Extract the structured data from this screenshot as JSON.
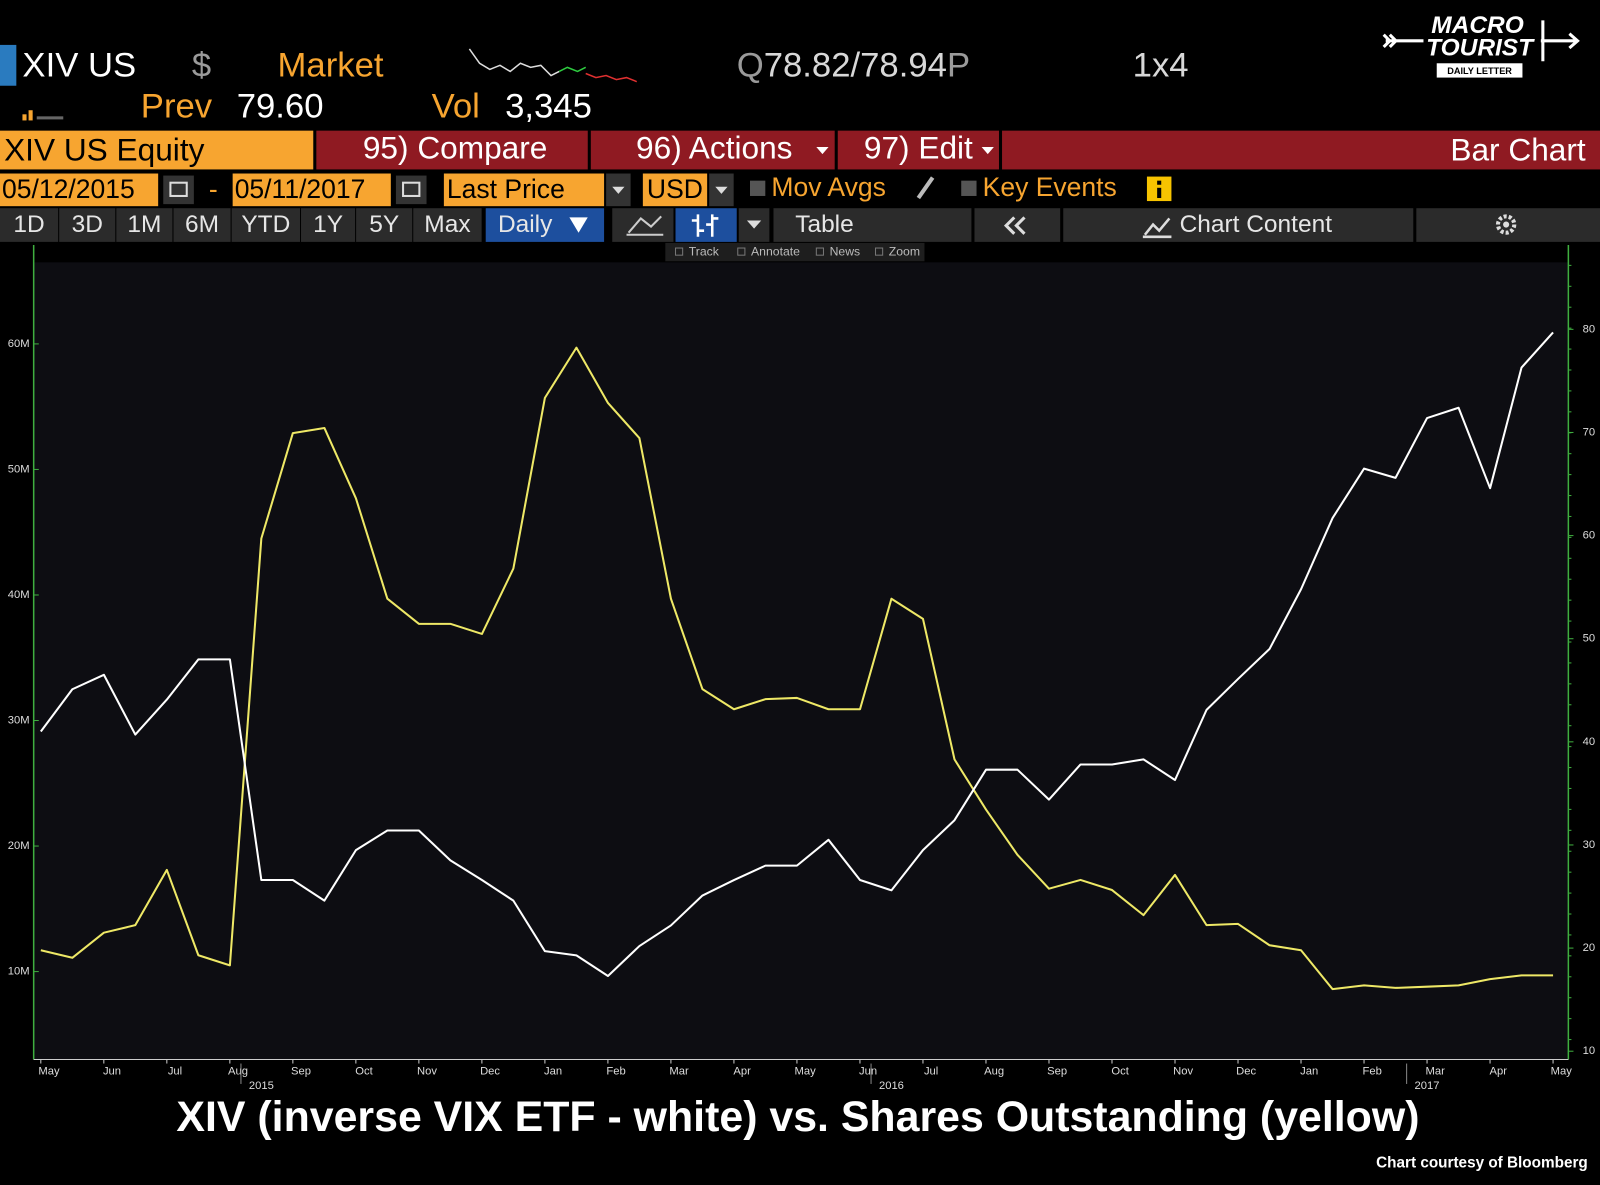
{
  "header": {
    "ticker": "XIV US",
    "currency": "$",
    "market": "Market",
    "quote_prefix": "Q",
    "quote": "78.82/78.94",
    "quote_suffix": "P",
    "size": "1x4",
    "prev_label": "Prev",
    "prev": "79.60",
    "vol_label": "Vol",
    "vol": "3,345"
  },
  "logo": {
    "line1": "MACRO",
    "line2": "TOURIST",
    "tagline": "DAILY LETTER"
  },
  "menu": {
    "security": "XIV US Equity",
    "compare": "95) Compare",
    "actions": "96) Actions",
    "edit": "97) Edit",
    "view": "Bar Chart"
  },
  "controls": {
    "start_date": "05/12/2015",
    "separator": "-",
    "end_date": "05/11/2017",
    "field": "Last Price",
    "currency": "USD",
    "mov_avgs": "Mov Avgs",
    "key_events": "Key Events"
  },
  "tabs": [
    "1D",
    "3D",
    "1M",
    "6M",
    "YTD",
    "1Y",
    "5Y",
    "Max"
  ],
  "period": "Daily",
  "table": "Table",
  "chart_content": "Chart Content",
  "tools": [
    "Track",
    "Annotate",
    "News",
    "Zoom"
  ],
  "chart_data": {
    "type": "line",
    "title": "XIV (inverse VIX ETF - white) vs. Shares Outstanding (yellow)",
    "source": "Chart courtesy of Bloomberg",
    "categories": [
      "May",
      null,
      "Jun",
      null,
      "Jul",
      null,
      "Aug",
      null,
      "Sep",
      null,
      "Oct",
      null,
      "Nov",
      null,
      "Dec",
      null,
      "Jan",
      null,
      "Feb",
      null,
      "Mar",
      null,
      "Apr",
      null,
      "May",
      null,
      "Jun",
      null,
      "Jul",
      null,
      "Aug",
      null,
      "Sep",
      null,
      "Oct",
      null,
      "Nov",
      null,
      "Dec",
      null,
      "Jan",
      null,
      "Feb",
      null,
      "Mar",
      null,
      "Apr",
      null,
      "May"
    ],
    "years": [
      "2015",
      "2016",
      "2017"
    ],
    "series": [
      {
        "color": "#ffffff",
        "axis": "y2",
        "values": [
          41,
          45.1,
          46.5,
          40.7,
          44.1,
          48.0,
          48.0,
          26.6,
          26.6,
          24.6,
          29.5,
          31.4,
          31.4,
          28.5,
          26.6,
          24.6,
          19.7,
          19.3,
          17.3,
          20.2,
          22.2,
          25.1,
          26.6,
          28.0,
          28.0,
          30.5,
          26.6,
          25.6,
          29.5,
          32.4,
          37.3,
          37.3,
          34.4,
          37.8,
          37.8,
          38.3,
          36.3,
          43.1,
          46.1,
          49.0,
          54.8,
          61.7,
          66.5,
          65.6,
          71.4,
          72.4,
          64.6,
          76.3,
          79.7
        ]
      },
      {
        "color": "#eee866",
        "values": [
          11.7,
          11.1,
          13.1,
          13.7,
          18.1,
          11.3,
          10.5,
          44.5,
          52.9,
          53.3,
          47.7,
          39.7,
          37.7,
          37.7,
          36.9,
          42.1,
          55.7,
          59.7,
          55.3,
          52.5,
          39.7,
          32.5,
          30.9,
          31.7,
          31.8,
          30.9,
          30.9,
          39.7,
          38.1,
          26.9,
          22.9,
          19.3,
          16.6,
          17.3,
          16.5,
          14.5,
          17.7,
          13.7,
          13.8,
          12.1,
          11.7,
          8.6,
          8.9,
          8.7,
          8.8,
          8.9,
          9.4,
          9.7,
          9.7
        ]
      }
    ],
    "ylim": [
      3,
      66.5
    ],
    "yticks": [
      {
        "value": 10,
        "label": "10M"
      },
      {
        "value": 20,
        "label": "20M"
      },
      {
        "value": 30,
        "label": "30M"
      },
      {
        "value": 40,
        "label": "40M"
      },
      {
        "value": 50,
        "label": "50M"
      },
      {
        "value": 60,
        "label": "60M"
      }
    ],
    "y2lim": [
      9.2,
      86.5
    ],
    "y2ticks": [
      10,
      20,
      30,
      40,
      50,
      60,
      70,
      80
    ],
    "grid": false,
    "axis_color": "#3fae3f"
  }
}
